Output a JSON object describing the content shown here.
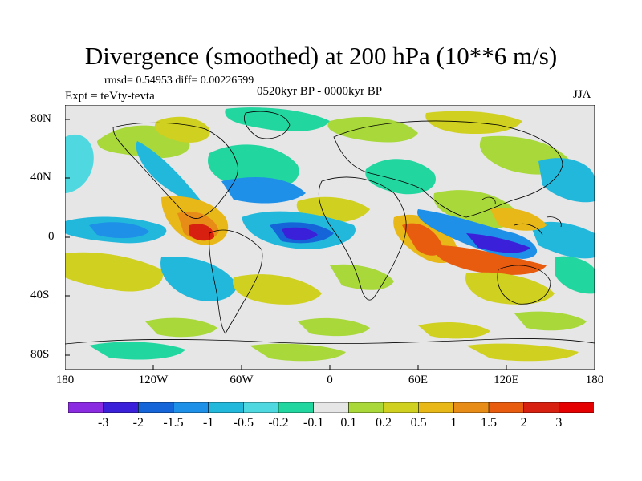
{
  "title": "Divergence (smoothed) at 200 hPa (10**6 m/s)",
  "stats": "rmsd= 0.54953 diff= 0.00226599",
  "experiment": "Expt = teVty-tevta",
  "period": "0520kyr BP - 0000kyr BP",
  "season": "JJA",
  "y_ticks": [
    "80N",
    "40N",
    "0",
    "40S",
    "80S"
  ],
  "x_ticks": [
    "180",
    "120W",
    "60W",
    "0",
    "60E",
    "120E",
    "180"
  ],
  "colorbar": {
    "labels": [
      "-3",
      "-2",
      "-1.5",
      "-1",
      "-0.5",
      "-0.2",
      "-0.1",
      "0.1",
      "0.2",
      "0.5",
      "1",
      "1.5",
      "2",
      "3"
    ],
    "colors": [
      "#8a2be2",
      "#3a20d8",
      "#1565d8",
      "#1e90e8",
      "#22b8dc",
      "#4fd8e0",
      "#22d6a0",
      "#e6e6e6",
      "#a8d83a",
      "#d0d020",
      "#e8b818",
      "#e88c18",
      "#e85c10",
      "#d82010",
      "#e40000"
    ]
  },
  "colors": {
    "background": "#ffffff",
    "ocean_fill": "#e6e6e6",
    "coastline": "#000000"
  }
}
